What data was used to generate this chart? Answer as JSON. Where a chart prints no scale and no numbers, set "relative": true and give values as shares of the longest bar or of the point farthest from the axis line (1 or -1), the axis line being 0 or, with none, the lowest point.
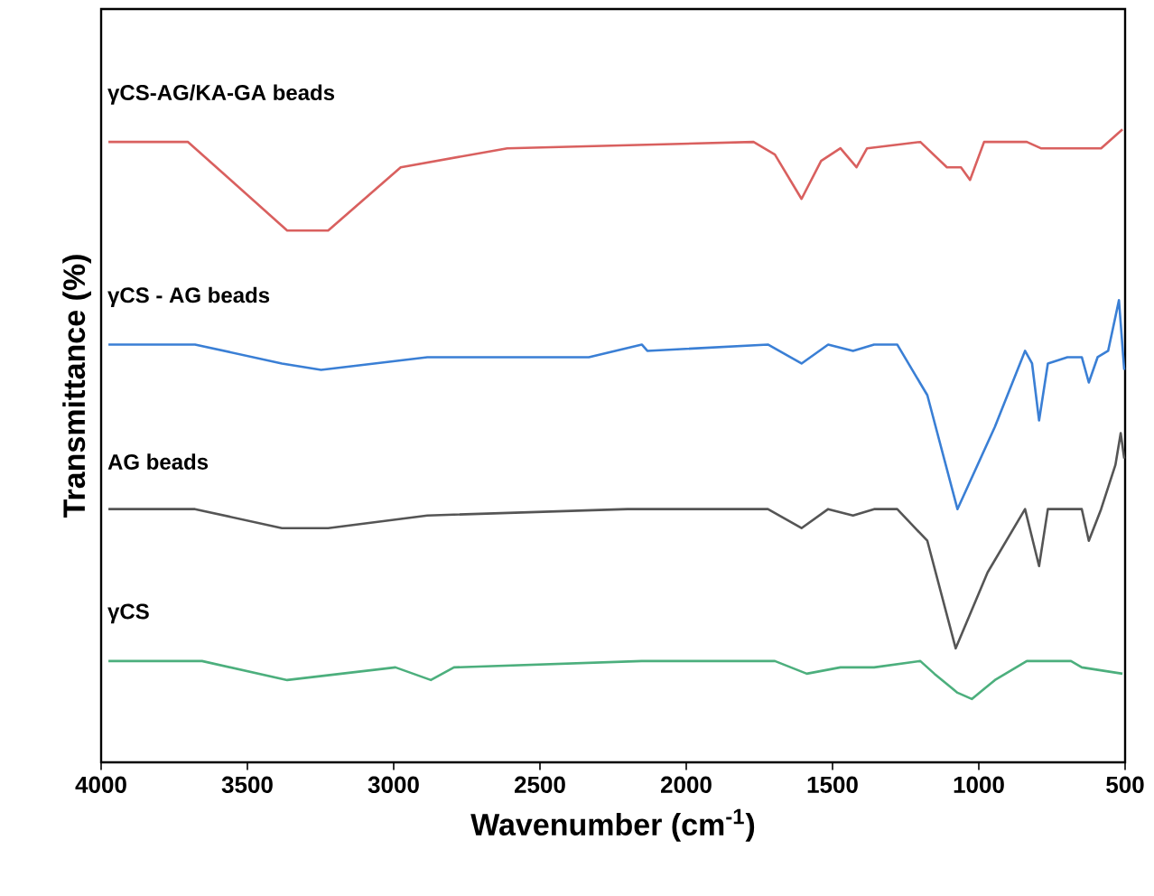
{
  "chart_data": {
    "type": "line",
    "xlabel": "Wavenumber (cm$^{-1}$)",
    "ylabel": "Transmittance (%)",
    "relative": true,
    "tick_labels": "x",
    "marker": "none",
    "line_style": "solid",
    "xlim": [
      4000,
      500
    ],
    "xticks": [
      4000,
      3500,
      3000,
      2500,
      2000,
      1500,
      1000,
      500
    ],
    "series": [
      {
        "name": "γCS-AG/KA-GA beads",
        "color": "#d9605f",
        "x": [
          3975,
          3703,
          3364,
          3224,
          2976,
          2612,
          1770,
          1697,
          1606,
          1539,
          1473,
          1418,
          1382,
          1200,
          1109,
          1061,
          1030,
          982,
          836,
          788,
          582,
          509
        ],
        "values": [
          0.98,
          0.98,
          0.84,
          0.84,
          0.94,
          0.97,
          0.98,
          0.96,
          0.89,
          0.95,
          0.97,
          0.94,
          0.97,
          0.98,
          0.94,
          0.94,
          0.92,
          0.98,
          0.98,
          0.97,
          0.97,
          1.0
        ]
      },
      {
        "name": "γCS - AG beads",
        "color": "#3a7fd5",
        "x": [
          3975,
          3679,
          3382,
          3248,
          2885,
          2333,
          2152,
          2133,
          1721,
          1606,
          1515,
          1430,
          1358,
          1279,
          1176,
          1073,
          945,
          842,
          818,
          794,
          764,
          697,
          648,
          624,
          594,
          558,
          521,
          503
        ],
        "values": [
          0.66,
          0.66,
          0.63,
          0.62,
          0.64,
          0.64,
          0.66,
          0.65,
          0.66,
          0.63,
          0.66,
          0.65,
          0.66,
          0.66,
          0.58,
          0.4,
          0.53,
          0.65,
          0.63,
          0.54,
          0.63,
          0.64,
          0.64,
          0.6,
          0.64,
          0.65,
          0.73,
          0.62
        ]
      },
      {
        "name": "AG beads",
        "color": "#555555",
        "x": [
          3975,
          3679,
          3382,
          3224,
          2885,
          2200,
          2152,
          1721,
          1606,
          1515,
          1430,
          1358,
          1279,
          1176,
          1079,
          970,
          842,
          794,
          764,
          648,
          624,
          582,
          533,
          515,
          503
        ],
        "values": [
          0.4,
          0.4,
          0.37,
          0.37,
          0.39,
          0.4,
          0.4,
          0.4,
          0.37,
          0.4,
          0.39,
          0.4,
          0.4,
          0.35,
          0.18,
          0.3,
          0.4,
          0.31,
          0.4,
          0.4,
          0.35,
          0.4,
          0.47,
          0.52,
          0.48
        ]
      },
      {
        "name": "γCS",
        "color": "#4caf7d",
        "x": [
          3975,
          3655,
          3364,
          2994,
          2873,
          2794,
          2152,
          1697,
          1588,
          1473,
          1358,
          1200,
          1152,
          1073,
          1024,
          945,
          836,
          685,
          648,
          509
        ],
        "values": [
          0.16,
          0.16,
          0.13,
          0.15,
          0.13,
          0.15,
          0.16,
          0.16,
          0.14,
          0.15,
          0.15,
          0.16,
          0.14,
          0.11,
          0.1,
          0.13,
          0.16,
          0.16,
          0.15,
          0.14
        ]
      }
    ]
  }
}
